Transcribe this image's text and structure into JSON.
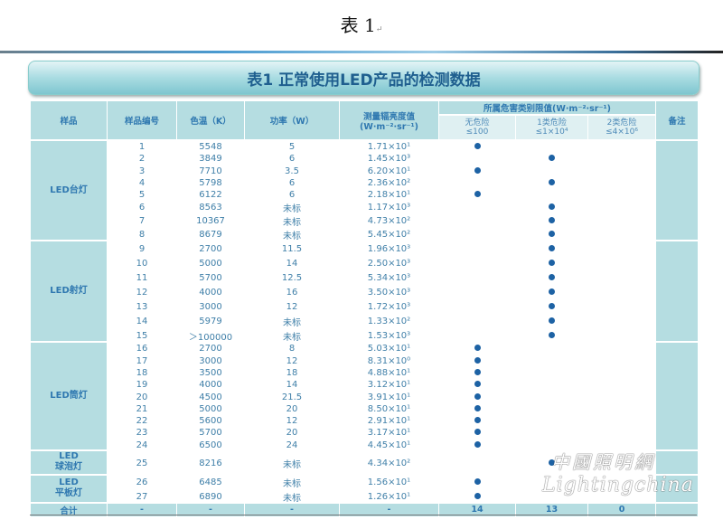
{
  "doc_title": "表 1",
  "paragraph_mark": "↵",
  "banner_title": "表1 正常使用LED产品的检测数据",
  "headers": {
    "sample": "样品",
    "number": "样品编号",
    "cct": "色温（K）",
    "power": "功率（W）",
    "radiance": "测量辐亮度值",
    "radiance_unit": "(W·m⁻²·sr⁻¹)",
    "hazard_group": "所属危害类别限值(W·m⁻²·sr⁻¹)",
    "hazard_cols": [
      {
        "name": "无危险",
        "limit": "≤100"
      },
      {
        "name": "1类危险",
        "limit": "≤1×10⁴"
      },
      {
        "name": "2类危险",
        "limit": "≤4×10⁶"
      }
    ],
    "note": "备注"
  },
  "groups": [
    {
      "label_line1": "LED台灯",
      "label_line2": "",
      "rows": [
        {
          "no": "1",
          "cct": "5548",
          "power": "5",
          "radiance": "1.71×10¹",
          "class": 0
        },
        {
          "no": "2",
          "cct": "3849",
          "power": "6",
          "radiance": "1.45×10³",
          "class": 1
        },
        {
          "no": "3",
          "cct": "7710",
          "power": "3.5",
          "radiance": "6.20×10¹",
          "class": 0
        },
        {
          "no": "4",
          "cct": "5798",
          "power": "6",
          "radiance": "2.36×10²",
          "class": 1
        },
        {
          "no": "5",
          "cct": "6122",
          "power": "6",
          "radiance": "2.18×10¹",
          "class": 0
        },
        {
          "no": "6",
          "cct": "8563",
          "power": "未标",
          "radiance": "1.17×10³",
          "class": 1
        },
        {
          "no": "7",
          "cct": "10367",
          "power": "未标",
          "radiance": "4.73×10²",
          "class": 1
        },
        {
          "no": "8",
          "cct": "8679",
          "power": "未标",
          "radiance": "5.45×10²",
          "class": 1
        }
      ]
    },
    {
      "label_line1": "LED射灯",
      "label_line2": "",
      "rows": [
        {
          "no": "9",
          "cct": "2700",
          "power": "11.5",
          "radiance": "1.96×10³",
          "class": 1
        },
        {
          "no": "10",
          "cct": "5000",
          "power": "14",
          "radiance": "2.50×10³",
          "class": 1
        },
        {
          "no": "11",
          "cct": "5700",
          "power": "12.5",
          "radiance": "5.34×10³",
          "class": 1
        },
        {
          "no": "12",
          "cct": "4000",
          "power": "16",
          "radiance": "3.50×10³",
          "class": 1
        },
        {
          "no": "13",
          "cct": "3000",
          "power": "12",
          "radiance": "1.72×10³",
          "class": 1
        },
        {
          "no": "14",
          "cct": "5979",
          "power": "未标",
          "radiance": "1.33×10²",
          "class": 1
        },
        {
          "no": "15",
          "cct": "＞100000",
          "power": "未标",
          "radiance": "1.53×10³",
          "class": 1
        }
      ]
    },
    {
      "label_line1": "LED筒灯",
      "label_line2": "",
      "rows": [
        {
          "no": "16",
          "cct": "2700",
          "power": "8",
          "radiance": "5.03×10¹",
          "class": 0
        },
        {
          "no": "17",
          "cct": "3000",
          "power": "12",
          "radiance": "8.31×10⁰",
          "class": 0
        },
        {
          "no": "18",
          "cct": "3500",
          "power": "18",
          "radiance": "4.88×10¹",
          "class": 0
        },
        {
          "no": "19",
          "cct": "4000",
          "power": "14",
          "radiance": "3.12×10¹",
          "class": 0
        },
        {
          "no": "20",
          "cct": "4500",
          "power": "21.5",
          "radiance": "3.91×10¹",
          "class": 0
        },
        {
          "no": "21",
          "cct": "5000",
          "power": "20",
          "radiance": "8.50×10¹",
          "class": 0
        },
        {
          "no": "22",
          "cct": "5600",
          "power": "12",
          "radiance": "2.91×10¹",
          "class": 0
        },
        {
          "no": "23",
          "cct": "5700",
          "power": "20",
          "radiance": "3.17×10¹",
          "class": 0
        },
        {
          "no": "24",
          "cct": "6500",
          "power": "24",
          "radiance": "4.45×10¹",
          "class": 0
        }
      ]
    },
    {
      "label_line1": "LED",
      "label_line2": "球泡灯",
      "rows": [
        {
          "no": "25",
          "cct": "8216",
          "power": "未标",
          "radiance": "4.34×10²",
          "class": 1
        }
      ]
    },
    {
      "label_line1": "LED",
      "label_line2": "平板灯",
      "rows": [
        {
          "no": "26",
          "cct": "6485",
          "power": "未标",
          "radiance": "1.56×10¹",
          "class": 0
        },
        {
          "no": "27",
          "cct": "6890",
          "power": "未标",
          "radiance": "1.26×10¹",
          "class": 0
        }
      ]
    }
  ],
  "total": {
    "label": "合计",
    "no": "-",
    "cct": "-",
    "power": "-",
    "radiance": "-",
    "counts": [
      "14",
      "13",
      "0"
    ]
  },
  "watermark": {
    "cn": "中國照明網",
    "en": "Lightingchina"
  },
  "colors": {
    "header_bg": "#b5dde1",
    "dot": "#1d62a4",
    "text": "#3f7fa8"
  }
}
